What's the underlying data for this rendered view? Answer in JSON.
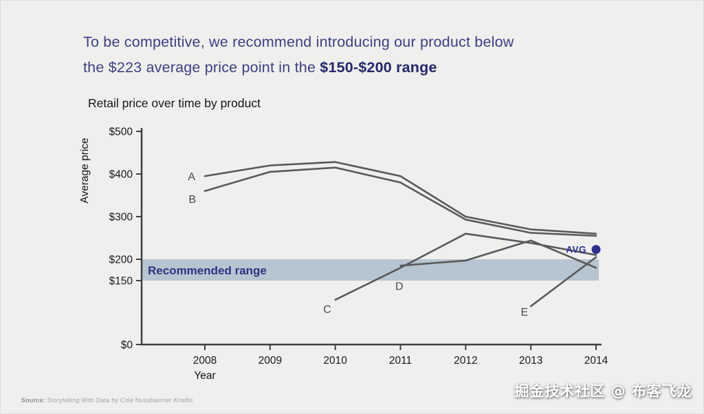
{
  "headline": {
    "line1": "To be competitive, we recommend introducing our product below",
    "line2_normal": "the $223 average price point in the ",
    "line2_bold": "$150-$200 range"
  },
  "chart_data": {
    "type": "line",
    "title": "Retail price over time by product",
    "xlabel": "Year",
    "ylabel": "Average price",
    "x": [
      2008,
      2009,
      2010,
      2011,
      2012,
      2013,
      2014
    ],
    "ylim": [
      0,
      500
    ],
    "yticks": [
      0,
      150,
      200,
      300,
      400,
      500
    ],
    "ytick_labels": [
      "$0",
      "$150",
      "$200",
      "$300",
      "$400",
      "$500"
    ],
    "series": [
      {
        "name": "A",
        "values": [
          395,
          420,
          428,
          395,
          300,
          270,
          260
        ],
        "label_offset": [
          -14,
          6
        ]
      },
      {
        "name": "B",
        "values": [
          360,
          405,
          415,
          380,
          293,
          262,
          255
        ],
        "label_offset": [
          -13,
          17
        ]
      },
      {
        "name": "C",
        "values": [
          null,
          null,
          105,
          180,
          260,
          238,
          210
        ],
        "label_offset": [
          -6,
          19
        ]
      },
      {
        "name": "D",
        "values": [
          null,
          null,
          null,
          185,
          197,
          244,
          180
        ],
        "label_offset": [
          4,
          35
        ]
      },
      {
        "name": "E",
        "values": [
          null,
          null,
          null,
          null,
          null,
          90,
          205
        ],
        "label_offset": [
          -4,
          14
        ]
      }
    ],
    "avg_point": {
      "label": "AVG",
      "x": 2014,
      "value": 223
    },
    "recommended_range": {
      "label": "Recommended range",
      "from": 150,
      "to": 200
    },
    "legend_position": "none",
    "grid": false,
    "line_color": "#58595b",
    "accent_color": "#2e3192",
    "band_color": "#b7c5d1",
    "axis_color": "#3f3f3f",
    "text_color": "#1a1a1a"
  },
  "footer": {
    "source_label": "Source:",
    "source_text": "Storytelling With Data by Cole Nussbaumer Knaflic",
    "watermark": "掘金技术社区 @ 布客飞龙"
  }
}
